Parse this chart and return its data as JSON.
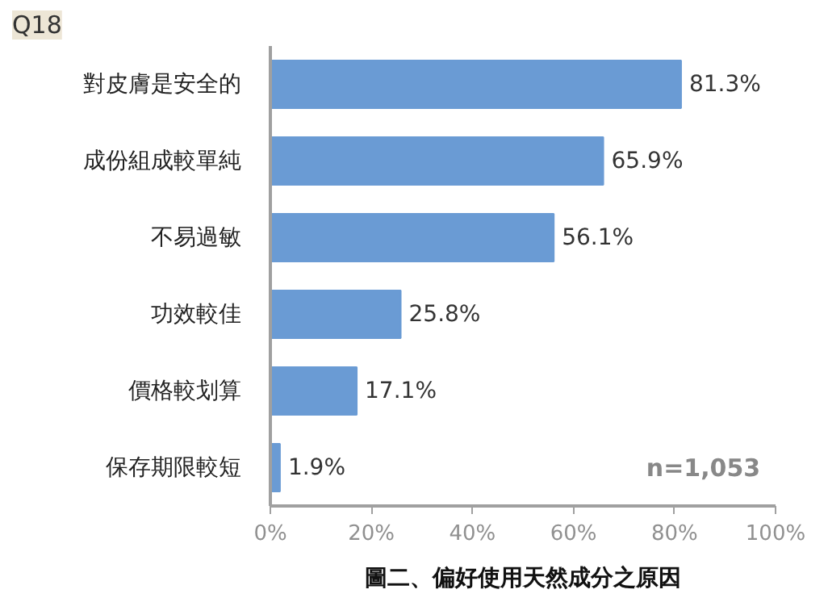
{
  "chart_data": {
    "type": "bar",
    "orientation": "horizontal",
    "title": "Q18",
    "categories": [
      "對皮膚是安全的",
      "成份組成較單純",
      "不易過敏",
      "功效較佳",
      "價格較划算",
      "保存期限較短"
    ],
    "values": [
      81.3,
      65.9,
      56.1,
      25.8,
      17.1,
      1.9
    ],
    "value_labels": [
      "81.3%",
      "65.9%",
      "56.1%",
      "25.8%",
      "17.1%",
      "1.9%"
    ],
    "color": "#6a9bd4",
    "xlim": [
      0,
      100
    ],
    "xticks": [
      {
        "value": 0,
        "label": "0%"
      },
      {
        "value": 20,
        "label": "20%"
      },
      {
        "value": 40,
        "label": "40%"
      },
      {
        "value": 60,
        "label": "60%"
      },
      {
        "value": 80,
        "label": "80%"
      },
      {
        "value": 100,
        "label": "100%"
      }
    ],
    "annotations": [
      "n=1,053",
      "圖二、偏好使用天然成分之原因"
    ],
    "grid": false
  }
}
